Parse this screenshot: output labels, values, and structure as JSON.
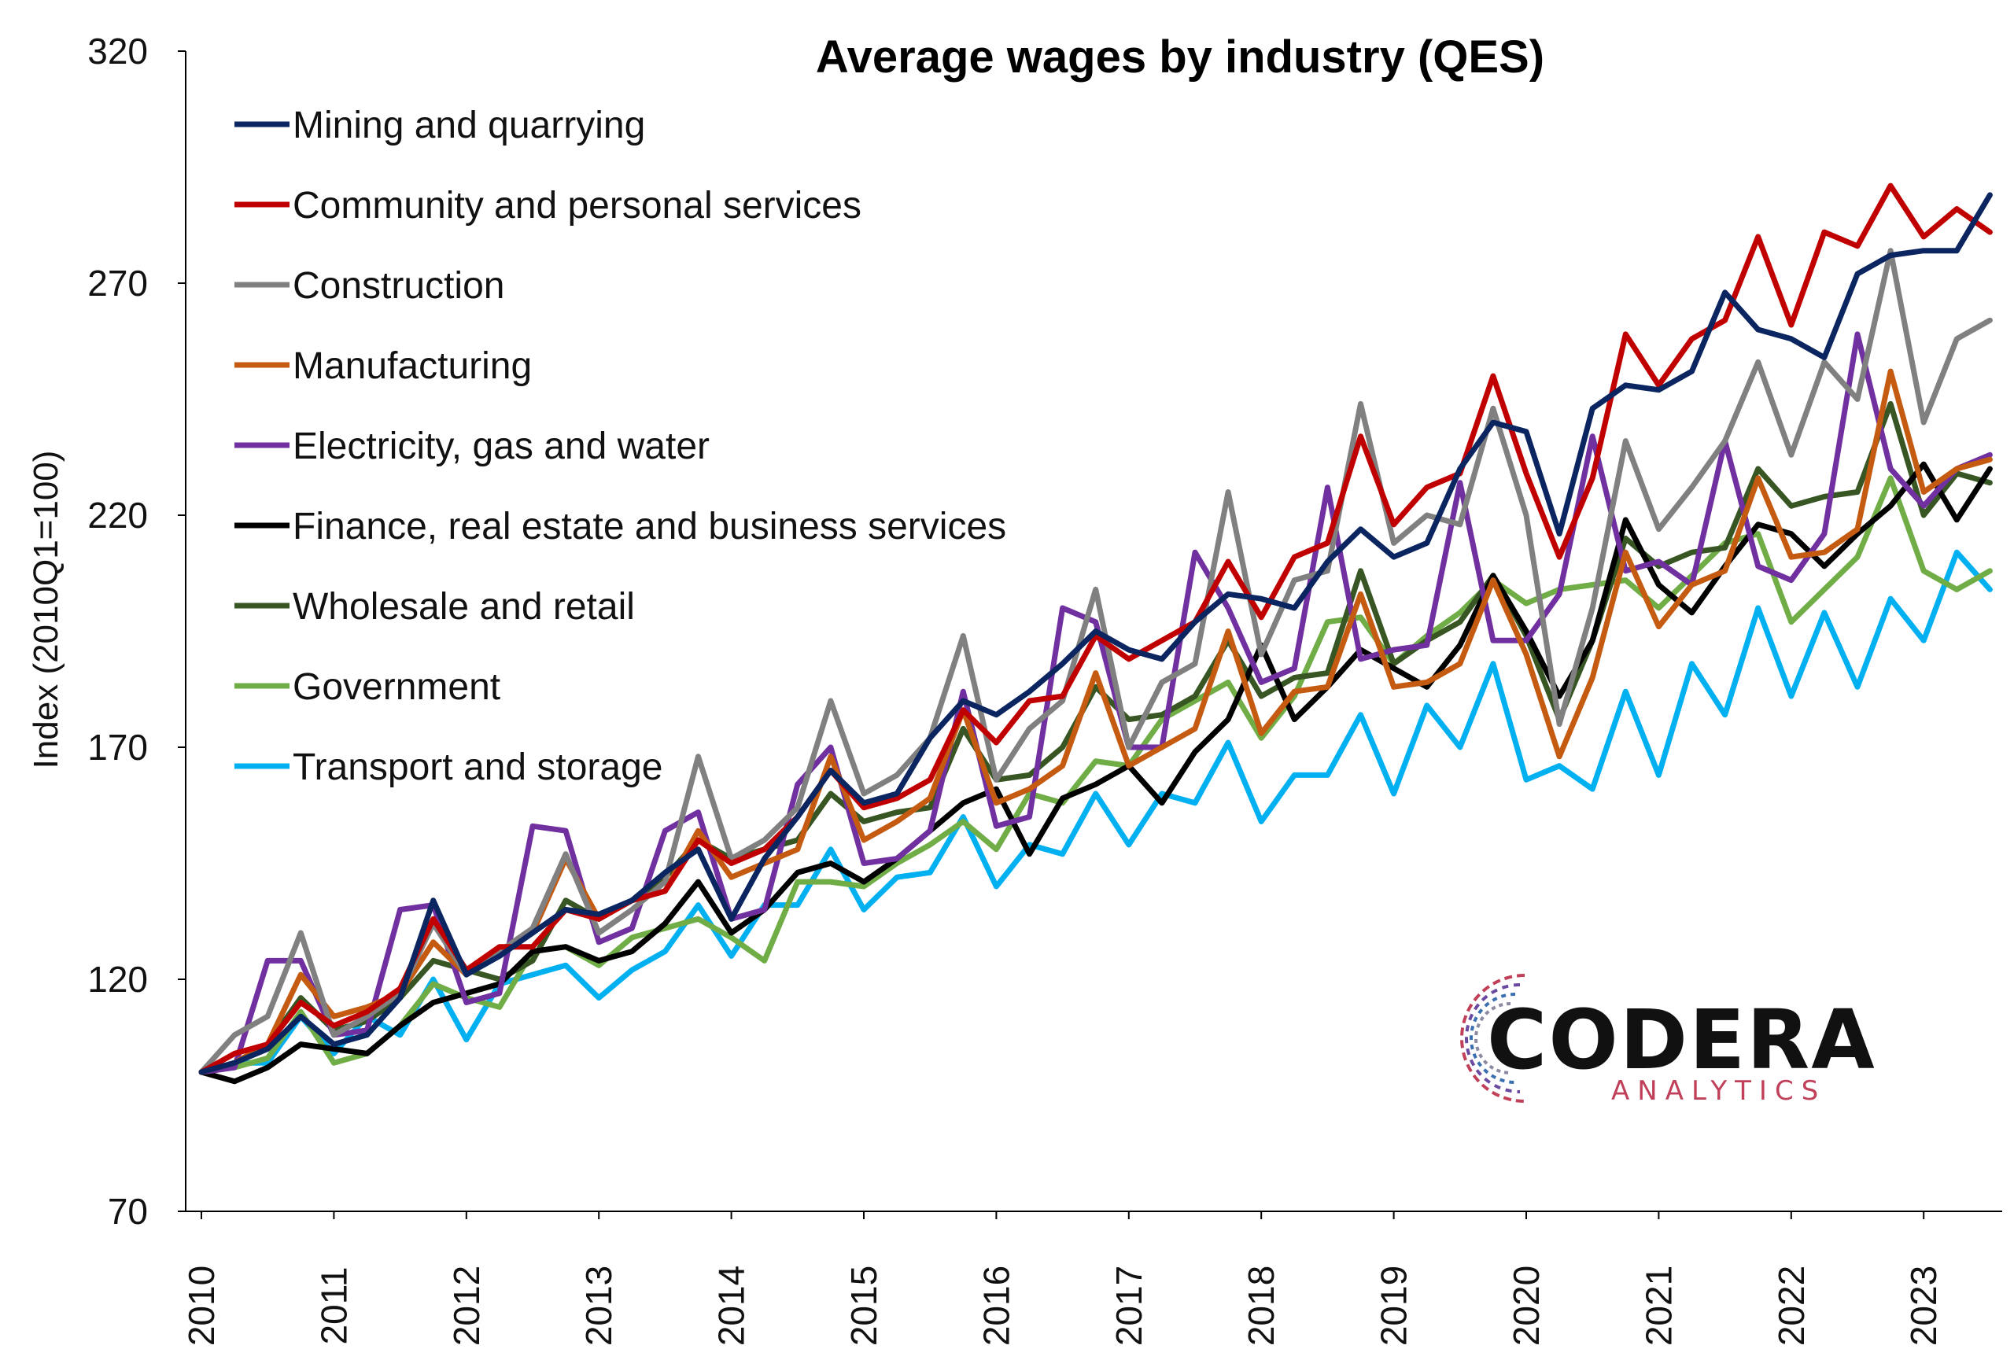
{
  "chart_data": {
    "type": "line",
    "title": "Average wages by industry (QES)",
    "ylabel": "Index (2010Q1=100)",
    "xlabel": "",
    "ylim": [
      70,
      320
    ],
    "yticks": [
      70,
      120,
      170,
      220,
      270,
      320
    ],
    "x_start_year": 2010,
    "x_labels": [
      "2010",
      "2011",
      "2012",
      "2013",
      "2014",
      "2015",
      "2016",
      "2017",
      "2018",
      "2019",
      "2020",
      "2021",
      "2022",
      "2023"
    ],
    "legend_position": "top-left",
    "grid": false,
    "series": [
      {
        "name": "Mining and quarrying",
        "color": "#0b2560",
        "values": [
          100,
          102,
          105,
          112,
          106,
          108,
          116,
          137,
          121,
          125,
          130,
          135,
          134,
          137,
          143,
          148,
          133,
          146,
          155,
          165,
          158,
          160,
          172,
          180,
          177,
          182,
          188,
          195,
          191,
          189,
          197,
          203,
          202,
          200,
          210,
          217,
          211,
          214,
          230,
          240,
          238,
          216,
          243,
          248,
          247,
          251,
          268,
          260,
          258,
          254,
          272,
          276,
          277,
          277,
          289
        ]
      },
      {
        "name": "Community and personal services",
        "color": "#c00000",
        "values": [
          100,
          104,
          106,
          115,
          110,
          113,
          118,
          133,
          122,
          127,
          127,
          135,
          133,
          137,
          139,
          150,
          145,
          148,
          155,
          165,
          157,
          159,
          163,
          178,
          171,
          180,
          181,
          194,
          189,
          193,
          197,
          210,
          198,
          211,
          214,
          237,
          218,
          226,
          229,
          250,
          229,
          211,
          228,
          259,
          248,
          258,
          262,
          280,
          261,
          281,
          278,
          291,
          280,
          286,
          281
        ]
      },
      {
        "name": "Construction",
        "color": "#808080",
        "values": [
          100,
          108,
          112,
          130,
          108,
          112,
          117,
          132,
          121,
          126,
          131,
          147,
          130,
          135,
          141,
          168,
          146,
          150,
          157,
          180,
          160,
          164,
          172,
          194,
          163,
          174,
          180,
          204,
          170,
          184,
          188,
          225,
          190,
          206,
          208,
          244,
          214,
          220,
          218,
          243,
          220,
          175,
          200,
          236,
          217,
          226,
          236,
          253,
          233,
          253,
          245,
          277,
          240,
          258,
          262
        ]
      },
      {
        "name": "Manufacturing",
        "color": "#c55a11",
        "values": [
          100,
          102,
          106,
          121,
          112,
          114,
          117,
          128,
          121,
          126,
          130,
          146,
          133,
          137,
          139,
          152,
          142,
          145,
          148,
          168,
          150,
          154,
          159,
          178,
          158,
          161,
          166,
          186,
          166,
          170,
          174,
          195,
          173,
          182,
          183,
          203,
          183,
          184,
          188,
          206,
          190,
          168,
          185,
          212,
          196,
          205,
          208,
          228,
          211,
          212,
          217,
          251,
          225,
          230,
          232
        ]
      },
      {
        "name": "Electricity, gas and water",
        "color": "#7030a0",
        "values": [
          100,
          101,
          124,
          124,
          108,
          109,
          135,
          136,
          115,
          117,
          153,
          152,
          128,
          131,
          152,
          156,
          133,
          135,
          162,
          170,
          145,
          146,
          152,
          182,
          153,
          155,
          200,
          197,
          170,
          170,
          212,
          200,
          184,
          187,
          226,
          189,
          191,
          192,
          227,
          193,
          193,
          203,
          237,
          208,
          210,
          205,
          236,
          209,
          206,
          216,
          259,
          230,
          222,
          230,
          233
        ]
      },
      {
        "name": "Finance, real estate and business services",
        "color": "#000000",
        "values": [
          100,
          98,
          101,
          106,
          105,
          104,
          110,
          115,
          117,
          119,
          126,
          127,
          124,
          126,
          132,
          141,
          130,
          135,
          143,
          145,
          141,
          146,
          152,
          158,
          161,
          147,
          159,
          162,
          166,
          158,
          169,
          176,
          192,
          176,
          183,
          191,
          187,
          183,
          192,
          207,
          195,
          181,
          193,
          219,
          205,
          199,
          209,
          218,
          216,
          209,
          216,
          222,
          231,
          219,
          230
        ]
      },
      {
        "name": "Wholesale and retail",
        "color": "#375623",
        "values": [
          100,
          102,
          106,
          116,
          109,
          111,
          116,
          124,
          122,
          120,
          124,
          137,
          133,
          137,
          142,
          150,
          146,
          148,
          150,
          160,
          154,
          156,
          157,
          174,
          163,
          164,
          170,
          183,
          176,
          177,
          181,
          193,
          181,
          185,
          186,
          208,
          188,
          193,
          197,
          207,
          194,
          176,
          193,
          215,
          209,
          212,
          213,
          230,
          222,
          224,
          225,
          244,
          220,
          229,
          227
        ]
      },
      {
        "name": "Government",
        "color": "#70ad47",
        "values": [
          100,
          101,
          103,
          113,
          102,
          104,
          110,
          119,
          116,
          114,
          126,
          127,
          123,
          129,
          131,
          133,
          129,
          124,
          141,
          141,
          140,
          145,
          149,
          154,
          148,
          160,
          158,
          167,
          166,
          176,
          180,
          184,
          172,
          181,
          197,
          198,
          188,
          194,
          199,
          206,
          201,
          204,
          205,
          206,
          200,
          207,
          214,
          216,
          197,
          204,
          211,
          228,
          208,
          204,
          208
        ]
      },
      {
        "name": "Transport and storage",
        "color": "#00b0f0",
        "values": [
          100,
          102,
          102,
          112,
          104,
          112,
          108,
          120,
          107,
          119,
          121,
          123,
          116,
          122,
          126,
          136,
          125,
          136,
          136,
          148,
          135,
          142,
          143,
          155,
          140,
          149,
          147,
          160,
          149,
          160,
          158,
          171,
          154,
          164,
          164,
          177,
          160,
          179,
          170,
          188,
          163,
          166,
          161,
          182,
          164,
          188,
          177,
          200,
          181,
          199,
          183,
          202,
          193,
          212,
          204
        ]
      }
    ]
  },
  "logo": {
    "main_text": "CODERA",
    "sub_text": "ANALYTICS"
  }
}
